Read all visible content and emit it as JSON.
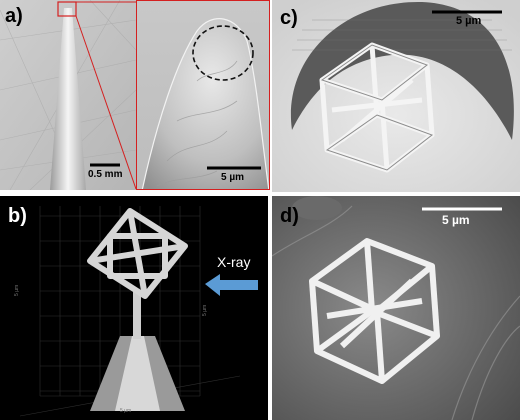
{
  "figure": {
    "panels": [
      {
        "id": "a",
        "label": "a)",
        "scalebars": [
          "0.5 mm",
          "5 µm"
        ]
      },
      {
        "id": "b",
        "label": "b)",
        "annotation": "X-ray",
        "arrow_color": "#5b9bd5",
        "axis_tick_labels": [
          "5 µm",
          "5 µm",
          "5 µm"
        ]
      },
      {
        "id": "c",
        "label": "c)",
        "scalebar": "5 µm"
      },
      {
        "id": "d",
        "label": "d)",
        "scalebar": "5 µm"
      }
    ],
    "colors": {
      "zoom_box": "#d42020",
      "outline_circle": "#111111"
    }
  }
}
